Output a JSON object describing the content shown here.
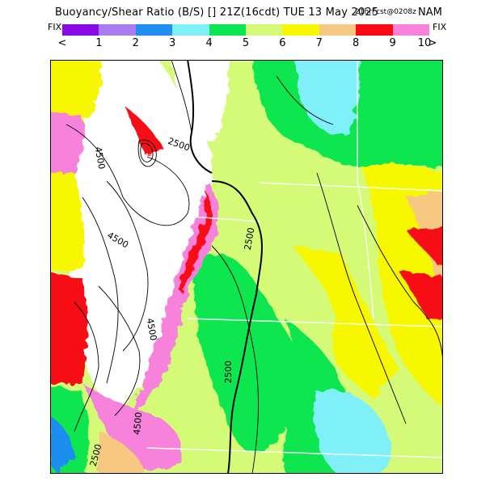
{
  "header": {
    "title_main": "Buoyancy/Shear Ratio (B/S) [] 21Z(16cdt) TUE 13 May 2025",
    "forecast_info": "21hrFcst@0208z",
    "model": "NAM"
  },
  "legend": {
    "fix_left": "FIX",
    "fix_right": "FIX",
    "less_than": "<",
    "greater_than": ">",
    "ticks": [
      "1",
      "2",
      "3",
      "4",
      "5",
      "6",
      "7",
      "8",
      "9",
      "10"
    ],
    "colors": [
      "#8a0ae6",
      "#a97cf0",
      "#1e8ef0",
      "#7ff0f7",
      "#0ae650",
      "#d4fa78",
      "#f7f700",
      "#f7c882",
      "#f70a16",
      "#f782dc"
    ]
  },
  "map": {
    "contour_labels": [
      {
        "text": "2500"
      },
      {
        "text": "4500"
      },
      {
        "text": "2500"
      },
      {
        "text": "4500"
      },
      {
        "text": "4500"
      },
      {
        "text": "2500"
      },
      {
        "text": "4500"
      },
      {
        "text": "2500"
      }
    ]
  }
}
